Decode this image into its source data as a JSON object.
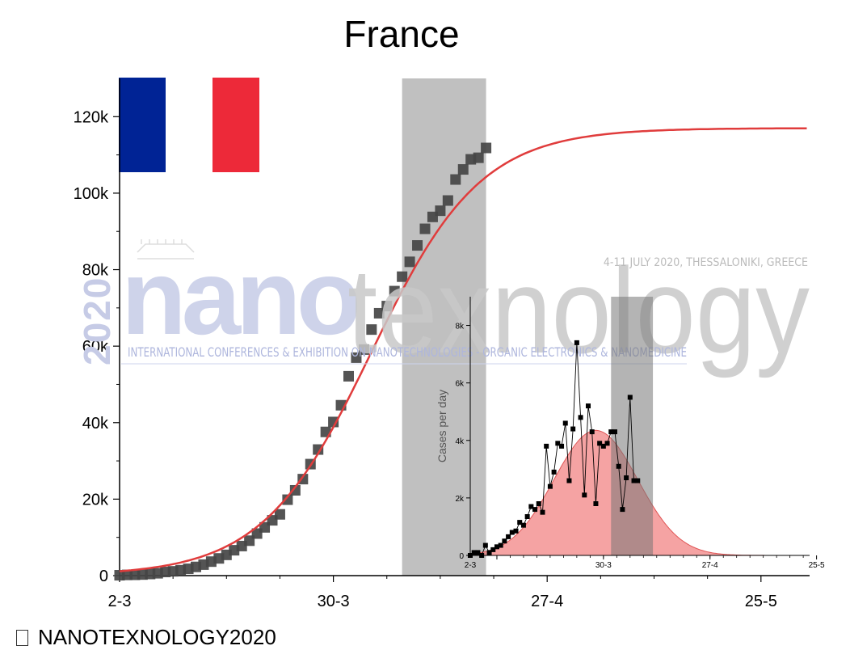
{
  "chart_data": [
    {
      "type": "scatter",
      "title": "France",
      "ylabel": "",
      "xlabel": "",
      "x_tick_labels": [
        "2-3",
        "30-3",
        "27-4",
        "25-5"
      ],
      "y_tick_labels": [
        "0",
        "20k",
        "40k",
        "60k",
        "80k",
        "100k",
        "120k"
      ],
      "ylim": [
        0,
        130000
      ],
      "grid": false,
      "highlight_band_days": [
        37,
        48
      ],
      "series": [
        {
          "kind": "points",
          "color": "#454545",
          "x_days": [
            0,
            1,
            2,
            3,
            4,
            5,
            6,
            7,
            8,
            9,
            10,
            11,
            12,
            13,
            14,
            15,
            16,
            17,
            18,
            19,
            20,
            21,
            22,
            23,
            24,
            25,
            26,
            27,
            28,
            29,
            30,
            31,
            32,
            33,
            34,
            35,
            36,
            37,
            38,
            39,
            40,
            41,
            42,
            43,
            44,
            45,
            46,
            47,
            48
          ],
          "values": [
            100,
            191,
            212,
            285,
            423,
            613,
            949,
            1126,
            1412,
            1784,
            2281,
            2876,
            3661,
            4499,
            5423,
            6633,
            7730,
            9134,
            10995,
            12612,
            14459,
            16018,
            19856,
            22304,
            25233,
            29155,
            32964,
            37575,
            40174,
            44550,
            52128,
            56989,
            59105,
            64338,
            68605,
            70478,
            74390,
            78167,
            82048,
            86334,
            90676,
            93790,
            95403,
            98076,
            103573,
            106206,
            108847,
            109252,
            111821
          ]
        },
        {
          "kind": "fit-curve",
          "color": "#e03c3c",
          "model": "logistic",
          "asymptote": 117000,
          "midpoint_day": 33,
          "growth_rate": 0.14
        }
      ]
    },
    {
      "type": "line",
      "title": "",
      "ylabel": "Cases per day",
      "xlabel": "",
      "x_tick_labels": [
        "2-3",
        "30-3",
        "27-4",
        "25-5"
      ],
      "y_tick_labels": [
        "0",
        "2k",
        "4k",
        "6k",
        "8k"
      ],
      "ylim": [
        0,
        9000
      ],
      "highlight_band_days": [
        37,
        48
      ],
      "series": [
        {
          "kind": "points-and-line",
          "color": "#000000",
          "x_days": [
            0,
            1,
            2,
            3,
            4,
            5,
            6,
            7,
            8,
            9,
            10,
            11,
            12,
            13,
            14,
            15,
            16,
            17,
            18,
            19,
            20,
            21,
            22,
            23,
            24,
            25,
            26,
            27,
            28,
            29,
            30,
            31,
            32,
            33,
            34,
            35,
            36,
            37,
            38,
            39,
            40,
            41,
            42,
            43,
            44,
            45,
            46,
            47,
            48
          ],
          "values": [
            0,
            100,
            100,
            0,
            350,
            100,
            200,
            300,
            350,
            500,
            650,
            800,
            850,
            1150,
            1050,
            1350,
            1700,
            1600,
            1800,
            1500,
            3800,
            2400,
            2900,
            3900,
            3800,
            4600,
            2600,
            4400,
            7400,
            4800,
            2100,
            5200,
            4300,
            1800,
            3900,
            3800,
            3900,
            4300,
            4300,
            3100,
            1600,
            2700,
            5500,
            2600,
            2600,
            0,
            0,
            0,
            0
          ]
        },
        {
          "kind": "fit-area",
          "color": "#ee6666",
          "model": "gaussian",
          "peak": 4350,
          "center_day": 33,
          "sigma_days": 11
        }
      ]
    }
  ],
  "flag": {
    "colors": [
      "#002395",
      "#ffffff",
      "#ed2939"
    ]
  },
  "watermark": {
    "brand_left": "nano",
    "brand_right": "texnology",
    "year": "2020",
    "tagline": "4-11 JULY 2020, THESSALONIKI, GREECE",
    "subline": "INTERNATIONAL CONFERENCES & EXHIBITION ON NANOTECHNOLOGIES - ORGANIC ELECTRONICS & NANOMEDICINE"
  },
  "footer": {
    "icon": "image-icon",
    "text": "NANOTEXNOLOGY2020"
  }
}
